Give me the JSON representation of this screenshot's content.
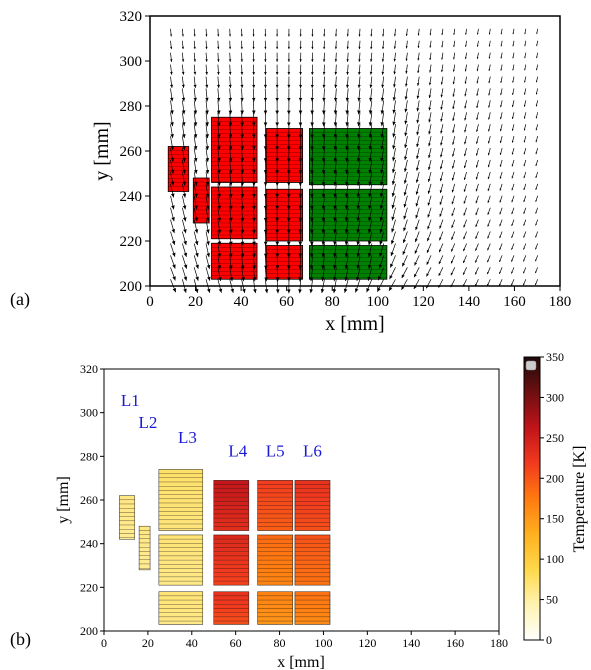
{
  "chart_data": [
    {
      "type": "scatter",
      "panel_label": "(a)",
      "xlabel": "x [mm]",
      "ylabel": "y [mm]",
      "xlim": [
        0,
        180
      ],
      "ylim": [
        200,
        320
      ],
      "xticks": [
        0,
        20,
        40,
        60,
        80,
        100,
        120,
        140,
        160,
        180
      ],
      "yticks": [
        200,
        220,
        240,
        260,
        280,
        300,
        320
      ],
      "grid": false,
      "colors": {
        "heated": "#ff0000",
        "cooled": "#008000",
        "arrow": "#000000"
      },
      "blocks": [
        {
          "x0": 8,
          "x1": 17,
          "y0": 242,
          "y1": 262,
          "color": "heated"
        },
        {
          "x0": 19,
          "x1": 26,
          "y0": 228,
          "y1": 248,
          "color": "heated"
        },
        {
          "x0": 27,
          "x1": 47,
          "y0": 246,
          "y1": 275,
          "color": "heated"
        },
        {
          "x0": 27,
          "x1": 47,
          "y0": 221,
          "y1": 244,
          "color": "heated"
        },
        {
          "x0": 27,
          "x1": 47,
          "y0": 203,
          "y1": 219,
          "color": "heated"
        },
        {
          "x0": 51,
          "x1": 67,
          "y0": 246,
          "y1": 270,
          "color": "heated"
        },
        {
          "x0": 51,
          "x1": 67,
          "y0": 220,
          "y1": 243,
          "color": "heated"
        },
        {
          "x0": 51,
          "x1": 67,
          "y0": 203,
          "y1": 218,
          "color": "heated"
        },
        {
          "x0": 70,
          "x1": 104,
          "y0": 245,
          "y1": 270,
          "color": "cooled"
        },
        {
          "x0": 70,
          "x1": 104,
          "y0": 220,
          "y1": 243,
          "color": "cooled"
        },
        {
          "x0": 70,
          "x1": 104,
          "y0": 203,
          "y1": 218,
          "color": "cooled"
        }
      ]
    },
    {
      "type": "heatmap",
      "panel_label": "(b)",
      "xlabel": "x [mm]",
      "ylabel": "y [mm]",
      "xlim": [
        0,
        180
      ],
      "ylim": [
        200,
        320
      ],
      "xticks": [
        0,
        20,
        40,
        60,
        80,
        100,
        120,
        140,
        160,
        180
      ],
      "yticks": [
        200,
        220,
        240,
        260,
        280,
        300,
        320
      ],
      "colorbar": {
        "label": "Temperature [K]",
        "range": [
          0,
          350
        ],
        "ticks": [
          0,
          50,
          100,
          150,
          200,
          250,
          300,
          350
        ],
        "colors": [
          "#ffffff",
          "#fff3b0",
          "#ffd84a",
          "#ffb020",
          "#ff7a10",
          "#f23a1e",
          "#c0141a",
          "#6e0f10",
          "#1e0a0a"
        ]
      },
      "layer_labels": [
        {
          "text": "L1",
          "x": 12,
          "y": 303
        },
        {
          "text": "L2",
          "x": 20,
          "y": 293
        },
        {
          "text": "L3",
          "x": 38,
          "y": 286
        },
        {
          "text": "L4",
          "x": 61,
          "y": 280
        },
        {
          "text": "L5",
          "x": 78,
          "y": 280
        },
        {
          "text": "L6",
          "x": 95,
          "y": 280
        }
      ],
      "blocks": [
        {
          "x0": 7,
          "x1": 14,
          "y0": 242,
          "y1": 262,
          "temp": 60
        },
        {
          "x0": 16,
          "x1": 21,
          "y0": 228,
          "y1": 248,
          "temp": 60
        },
        {
          "x0": 25,
          "x1": 45,
          "y0": 246,
          "y1": 274,
          "temp": 70
        },
        {
          "x0": 25,
          "x1": 45,
          "y0": 221,
          "y1": 244,
          "temp": 65
        },
        {
          "x0": 25,
          "x1": 45,
          "y0": 203,
          "y1": 218,
          "temp": 65
        },
        {
          "x0": 50,
          "x1": 66,
          "y0": 246,
          "y1": 269,
          "temp": 245
        },
        {
          "x0": 50,
          "x1": 66,
          "y0": 221,
          "y1": 244,
          "temp": 225
        },
        {
          "x0": 50,
          "x1": 66,
          "y0": 203,
          "y1": 218,
          "temp": 215
        },
        {
          "x0": 70,
          "x1": 86,
          "y0": 246,
          "y1": 269,
          "temp": 205
        },
        {
          "x0": 70,
          "x1": 86,
          "y0": 221,
          "y1": 244,
          "temp": 175
        },
        {
          "x0": 70,
          "x1": 86,
          "y0": 203,
          "y1": 218,
          "temp": 160
        },
        {
          "x0": 87,
          "x1": 103,
          "y0": 246,
          "y1": 269,
          "temp": 215
        },
        {
          "x0": 87,
          "x1": 103,
          "y0": 221,
          "y1": 244,
          "temp": 190
        },
        {
          "x0": 87,
          "x1": 103,
          "y0": 203,
          "y1": 218,
          "temp": 170
        }
      ]
    }
  ]
}
